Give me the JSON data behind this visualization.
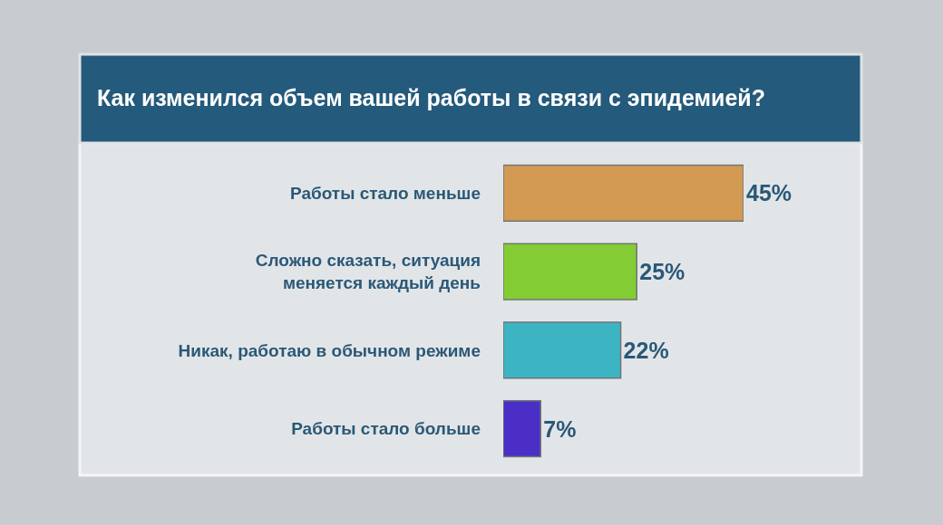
{
  "chart_data": {
    "type": "bar",
    "title": "Как изменился объем вашей работы в связи с эпидемией?",
    "orientation": "horizontal",
    "categories": [
      "Работы стало меньше",
      "Сложно сказать, ситуация меняется каждый день",
      "Никак, работаю в обычном режиме",
      "Работы стало больше"
    ],
    "values": [
      45,
      25,
      22,
      7
    ],
    "colors": [
      "#d29a52",
      "#84cc34",
      "#3db4c2",
      "#4a2ec6"
    ],
    "value_labels": [
      "45%",
      "25%",
      "22%",
      "7%"
    ],
    "legend": false,
    "grid": false,
    "tick_labels": "y"
  }
}
